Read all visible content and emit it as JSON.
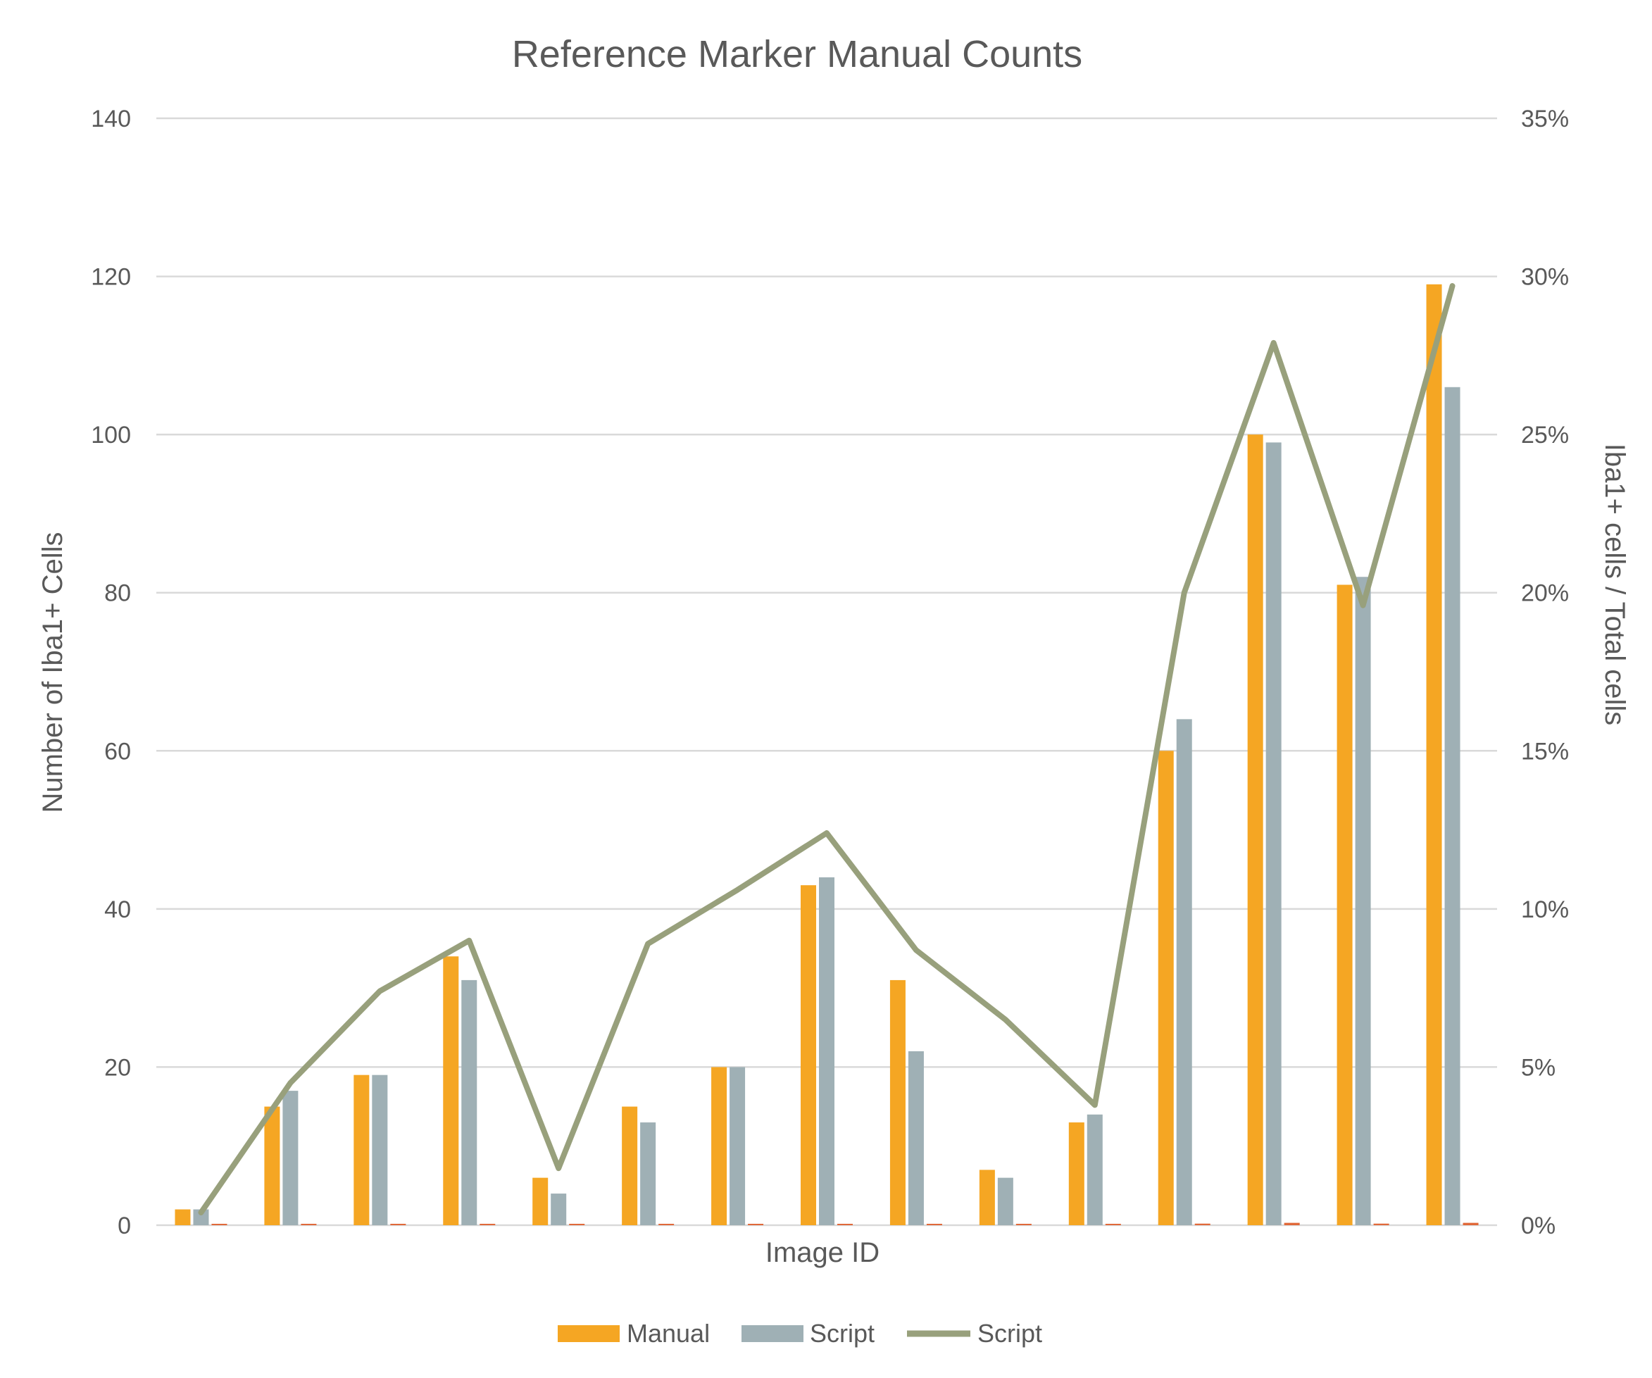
{
  "chart_data": {
    "type": "bar",
    "title": "Reference Marker Manual Counts",
    "xlabel": "Image ID",
    "ylabel": "Number of Iba1+ Cells",
    "y2label": "Iba1+ cells / Total cells",
    "ylim": [
      0,
      140
    ],
    "y2lim": [
      0,
      0.35
    ],
    "yticks": [
      "0",
      "20",
      "40",
      "60",
      "80",
      "100",
      "120",
      "140"
    ],
    "y2ticks": [
      "0%",
      "5%",
      "10%",
      "15%",
      "20%",
      "25%",
      "30%",
      "35%"
    ],
    "grid": true,
    "legend_position": "bottom",
    "categories_count": 15,
    "series": [
      {
        "name": "Manual",
        "type": "bar",
        "axis": "left",
        "color": "#f5a623",
        "values": [
          2,
          15,
          19,
          34,
          6,
          15,
          20,
          43,
          31,
          7,
          13,
          60,
          100,
          81,
          119
        ]
      },
      {
        "name": "Script",
        "type": "bar",
        "axis": "left",
        "color": "#9fb0b5",
        "values": [
          2,
          17,
          19,
          31,
          4,
          13,
          20,
          44,
          22,
          6,
          14,
          64,
          99,
          82,
          106
        ]
      },
      {
        "type": "bar",
        "axis": "left",
        "color": "#e0693a",
        "values": [
          0.05,
          0.1,
          0.1,
          0.1,
          0.05,
          0.1,
          0.1,
          0.1,
          0.1,
          0.05,
          0.1,
          0.2,
          0.3,
          0.2,
          0.3
        ]
      },
      {
        "name": "Script",
        "type": "line",
        "axis": "right",
        "color": "#98a07c",
        "values": [
          0.004,
          0.045,
          0.074,
          0.09,
          0.018,
          0.089,
          0.106,
          0.124,
          0.087,
          0.065,
          0.038,
          0.2,
          0.279,
          0.196,
          0.297
        ]
      }
    ]
  }
}
